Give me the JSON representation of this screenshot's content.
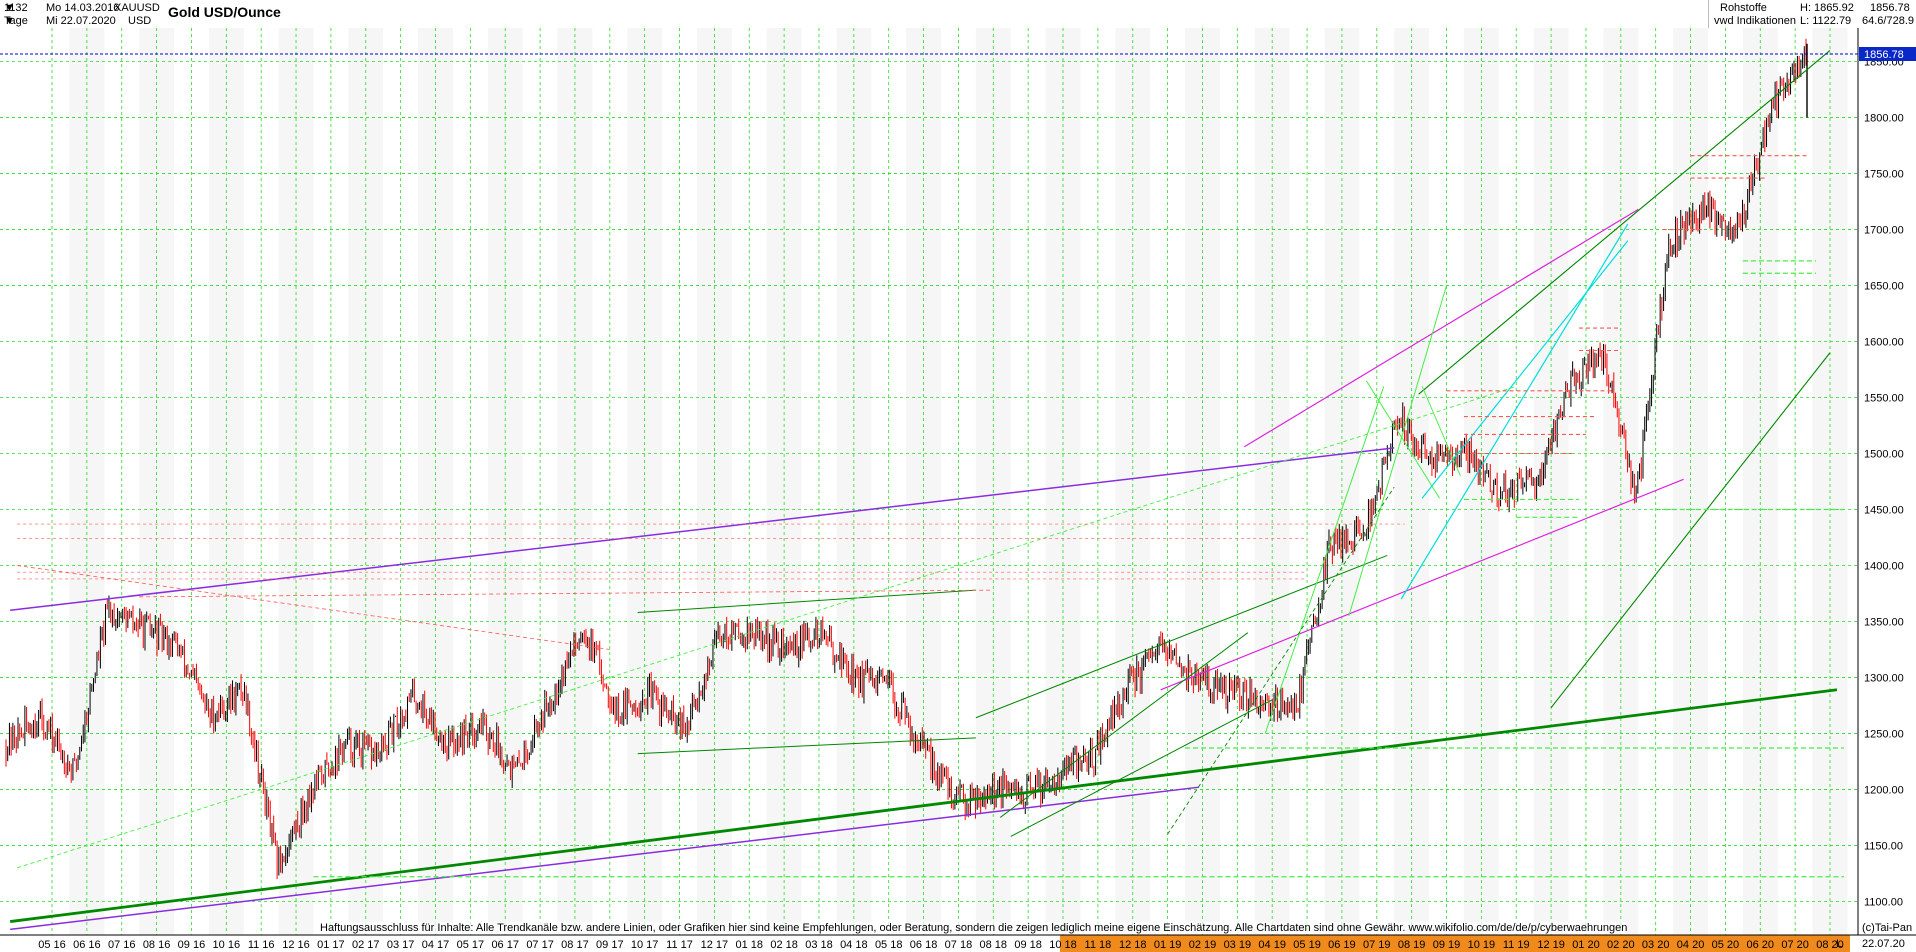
{
  "header": {
    "bars": "1132",
    "start_date": "Mo 14.03.2016",
    "period": "Tage",
    "end_date": "Mi 22.07.2020",
    "symbol": "XAUUSD",
    "currency": "USD",
    "title": "Gold USD/Ounce",
    "category": "Rohstoffe",
    "source": "vwd Indikationen",
    "high_label": "H: 1865.92",
    "low_label": "L: 1122.79",
    "last_value": "1856.78",
    "counts": "64.6/728.9"
  },
  "footer": {
    "disclaimer": "Haftungsausschluss für Inhalte: Alle Trendkanäle bzw. andere Linien, oder Grafiken hier sind keine Empfehlungen, oder Beratung, sondern die zeigen lediglich meine eigene Einschätzung. Alle Chartdaten sind ohne Gewähr.  www.wikifolio.com/de/de/p/cyberwaehrungen",
    "copyright": "(c)Tai-Pan",
    "last_date": "22.07.20",
    "mode": "L"
  },
  "colors": {
    "up_candle": "#000000",
    "down_candle": "#ff0000",
    "grid": "#22dd22",
    "price_line": "#0000cc",
    "price_tag": "#0a28c8",
    "axis_strip": "#f08a1c",
    "trend_green": "#008800",
    "trend_purple": "#8a2be2",
    "trend_magenta": "#dd22dd",
    "trend_cyan": "#00dddd",
    "light_green": "#44ee44"
  },
  "chart_data": {
    "type": "candlestick",
    "title": "Gold USD/Ounce",
    "ylim": [
      1070,
      1880
    ],
    "y_ticks": [
      1100,
      1150,
      1200,
      1250,
      1300,
      1350,
      1400,
      1450,
      1500,
      1550,
      1600,
      1650,
      1700,
      1750,
      1800,
      1850
    ],
    "y_tick_labels": [
      "1100.00",
      "1150.00",
      "1200.00",
      "1250.00",
      "1300.00",
      "1350.00",
      "1400.00",
      "1450.00",
      "1500.00",
      "1550.00",
      "1600.00",
      "1650.00",
      "1700.00",
      "1750.00",
      "1800.00",
      "1850.00"
    ],
    "x_tick_labels": [
      "05 16",
      "06 16",
      "07 16",
      "08 16",
      "09 16",
      "10 16",
      "11 16",
      "12 16",
      "01 17",
      "02 17",
      "03 17",
      "04 17",
      "05 17",
      "06 17",
      "07 17",
      "08 17",
      "09 17",
      "10 17",
      "11 17",
      "12 17",
      "01 18",
      "02 18",
      "03 18",
      "04 18",
      "05 18",
      "06 18",
      "07 18",
      "08 18",
      "09 18",
      "10 18",
      "11 18",
      "12 18",
      "01 19",
      "02 19",
      "03 19",
      "04 19",
      "05 19",
      "06 19",
      "07 19",
      "08 19",
      "09 19",
      "10 19",
      "11 19",
      "12 19",
      "01 20",
      "02 20",
      "03 20",
      "04 20",
      "05 20",
      "06 20",
      "07 20",
      "08 20"
    ],
    "close_path": [
      [
        "2016-03",
        1240
      ],
      [
        "2016-05",
        1265
      ],
      [
        "2016-06",
        1215
      ],
      [
        "2016-07",
        1360
      ],
      [
        "2016-08",
        1345
      ],
      [
        "2016-09",
        1330
      ],
      [
        "2016-10",
        1265
      ],
      [
        "2016-11",
        1290
      ],
      [
        "2016-12",
        1130
      ],
      [
        "2017-01",
        1200
      ],
      [
        "2017-02",
        1240
      ],
      [
        "2017-03",
        1230
      ],
      [
        "2017-04",
        1285
      ],
      [
        "2017-05",
        1240
      ],
      [
        "2017-06",
        1260
      ],
      [
        "2017-07",
        1215
      ],
      [
        "2017-08",
        1280
      ],
      [
        "2017-09",
        1345
      ],
      [
        "2017-10",
        1270
      ],
      [
        "2017-11",
        1285
      ],
      [
        "2017-12",
        1250
      ],
      [
        "2018-01",
        1340
      ],
      [
        "2018-02",
        1340
      ],
      [
        "2018-03",
        1325
      ],
      [
        "2018-04",
        1340
      ],
      [
        "2018-05",
        1300
      ],
      [
        "2018-06",
        1290
      ],
      [
        "2018-07",
        1235
      ],
      [
        "2018-08",
        1190
      ],
      [
        "2018-09",
        1200
      ],
      [
        "2018-10",
        1195
      ],
      [
        "2018-11",
        1215
      ],
      [
        "2018-12",
        1230
      ],
      [
        "2019-01",
        1290
      ],
      [
        "2019-02",
        1325
      ],
      [
        "2019-03",
        1300
      ],
      [
        "2019-04",
        1285
      ],
      [
        "2019-05",
        1280
      ],
      [
        "2019-06",
        1275
      ],
      [
        "2019-07",
        1420
      ],
      [
        "2019-08",
        1430
      ],
      [
        "2019-09",
        1530
      ],
      [
        "2019-10",
        1495
      ],
      [
        "2019-11",
        1500
      ],
      [
        "2019-12",
        1465
      ],
      [
        "2020-01",
        1470
      ],
      [
        "2020-02",
        1560
      ],
      [
        "2020-03",
        1590
      ],
      [
        "2020-04",
        1460
      ],
      [
        "2020-05",
        1690
      ],
      [
        "2020-06",
        1720
      ],
      [
        "2020-07",
        1700
      ],
      [
        "2020-07b",
        1810
      ],
      [
        "2020-07c",
        1856.78
      ]
    ],
    "last": 1856.78,
    "high": 1865.92,
    "low": 1122.79
  }
}
